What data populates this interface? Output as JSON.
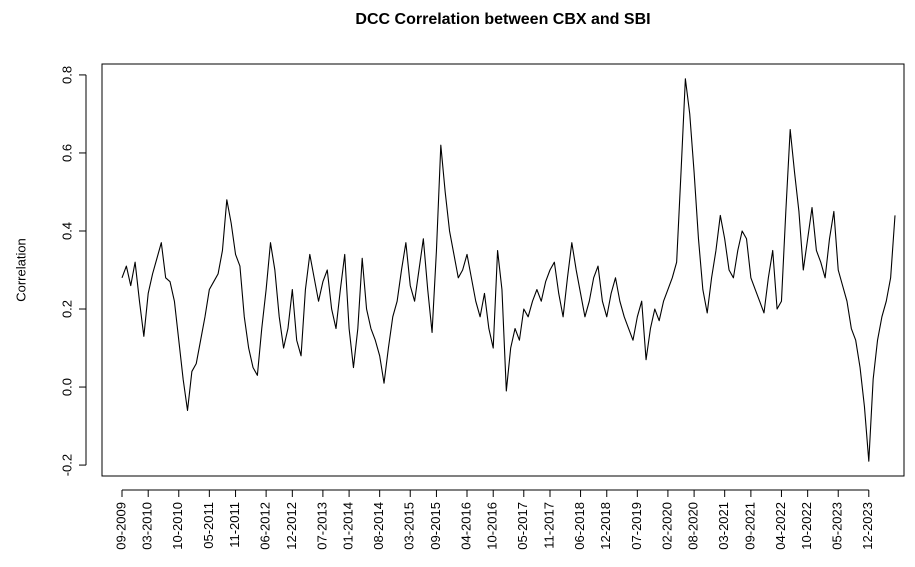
{
  "chart_data": {
    "type": "line",
    "title": "DCC Correlation between CBX and SBI",
    "y_label": "Correlation",
    "x": [
      "09-2009",
      "10-2009",
      "11-2009",
      "12-2009",
      "01-2010",
      "02-2010",
      "03-2010",
      "04-2010",
      "05-2010",
      "06-2010",
      "07-2010",
      "08-2010",
      "09-2010",
      "10-2010",
      "11-2010",
      "12-2010",
      "01-2011",
      "02-2011",
      "03-2011",
      "04-2011",
      "05-2011",
      "06-2011",
      "07-2011",
      "08-2011",
      "09-2011",
      "10-2011",
      "11-2011",
      "12-2011",
      "01-2012",
      "02-2012",
      "03-2012",
      "04-2012",
      "05-2012",
      "06-2012",
      "07-2012",
      "08-2012",
      "09-2012",
      "10-2012",
      "11-2012",
      "12-2012",
      "01-2013",
      "02-2013",
      "03-2013",
      "04-2013",
      "05-2013",
      "06-2013",
      "07-2013",
      "08-2013",
      "09-2013",
      "10-2013",
      "11-2013",
      "12-2013",
      "01-2014",
      "02-2014",
      "03-2014",
      "04-2014",
      "05-2014",
      "06-2014",
      "07-2014",
      "08-2014",
      "09-2014",
      "10-2014",
      "11-2014",
      "12-2014",
      "01-2015",
      "02-2015",
      "03-2015",
      "04-2015",
      "05-2015",
      "06-2015",
      "07-2015",
      "08-2015",
      "09-2015",
      "10-2015",
      "11-2015",
      "12-2015",
      "01-2016",
      "02-2016",
      "03-2016",
      "04-2016",
      "05-2016",
      "06-2016",
      "07-2016",
      "08-2016",
      "09-2016",
      "10-2016",
      "11-2016",
      "12-2016",
      "01-2017",
      "02-2017",
      "03-2017",
      "04-2017",
      "05-2017",
      "06-2017",
      "07-2017",
      "08-2017",
      "09-2017",
      "10-2017",
      "11-2017",
      "12-2017",
      "01-2018",
      "02-2018",
      "03-2018",
      "04-2018",
      "05-2018",
      "06-2018",
      "07-2018",
      "08-2018",
      "09-2018",
      "10-2018",
      "11-2018",
      "12-2018",
      "01-2019",
      "02-2019",
      "03-2019",
      "04-2019",
      "05-2019",
      "06-2019",
      "07-2019",
      "08-2019",
      "09-2019",
      "10-2019",
      "11-2019",
      "12-2019",
      "01-2020",
      "02-2020",
      "03-2020",
      "04-2020",
      "05-2020",
      "06-2020",
      "07-2020",
      "08-2020",
      "09-2020",
      "10-2020",
      "11-2020",
      "12-2020",
      "01-2021",
      "02-2021",
      "03-2021",
      "04-2021",
      "05-2021",
      "06-2021",
      "07-2021",
      "08-2021",
      "09-2021",
      "10-2021",
      "11-2021",
      "12-2021",
      "01-2022",
      "02-2022",
      "03-2022",
      "04-2022",
      "05-2022",
      "06-2022",
      "07-2022",
      "08-2022",
      "09-2022",
      "10-2022",
      "11-2022",
      "12-2022",
      "01-2023",
      "02-2023",
      "03-2023",
      "04-2023",
      "05-2023",
      "06-2023",
      "07-2023",
      "08-2023",
      "09-2023",
      "10-2023",
      "11-2023",
      "12-2023",
      "01-2024",
      "02-2024",
      "03-2024",
      "04-2024",
      "05-2024",
      "06-2024"
    ],
    "values": [
      0.28,
      0.31,
      0.26,
      0.32,
      0.22,
      0.13,
      0.24,
      0.29,
      0.33,
      0.37,
      0.28,
      0.27,
      0.22,
      0.12,
      0.02,
      -0.06,
      0.04,
      0.06,
      0.12,
      0.18,
      0.25,
      0.27,
      0.29,
      0.35,
      0.48,
      0.42,
      0.34,
      0.31,
      0.18,
      0.1,
      0.05,
      0.03,
      0.15,
      0.25,
      0.37,
      0.3,
      0.18,
      0.1,
      0.15,
      0.25,
      0.12,
      0.08,
      0.25,
      0.34,
      0.28,
      0.22,
      0.27,
      0.3,
      0.2,
      0.15,
      0.25,
      0.34,
      0.15,
      0.05,
      0.15,
      0.33,
      0.2,
      0.15,
      0.12,
      0.08,
      0.01,
      0.1,
      0.18,
      0.22,
      0.3,
      0.37,
      0.26,
      0.22,
      0.3,
      0.38,
      0.25,
      0.14,
      0.35,
      0.62,
      0.5,
      0.4,
      0.34,
      0.28,
      0.3,
      0.34,
      0.28,
      0.22,
      0.18,
      0.24,
      0.15,
      0.1,
      0.35,
      0.25,
      -0.01,
      0.1,
      0.15,
      0.12,
      0.2,
      0.18,
      0.22,
      0.25,
      0.22,
      0.27,
      0.3,
      0.32,
      0.24,
      0.18,
      0.28,
      0.37,
      0.3,
      0.24,
      0.18,
      0.22,
      0.28,
      0.31,
      0.22,
      0.18,
      0.24,
      0.28,
      0.22,
      0.18,
      0.15,
      0.12,
      0.18,
      0.22,
      0.07,
      0.15,
      0.2,
      0.17,
      0.22,
      0.25,
      0.28,
      0.32,
      0.55,
      0.79,
      0.7,
      0.55,
      0.38,
      0.25,
      0.19,
      0.28,
      0.35,
      0.44,
      0.38,
      0.3,
      0.28,
      0.35,
      0.4,
      0.38,
      0.28,
      0.25,
      0.22,
      0.19,
      0.28,
      0.35,
      0.2,
      0.22,
      0.45,
      0.66,
      0.55,
      0.45,
      0.3,
      0.38,
      0.46,
      0.35,
      0.32,
      0.28,
      0.38,
      0.45,
      0.3,
      0.26,
      0.22,
      0.15,
      0.12,
      0.05,
      -0.05,
      -0.19,
      0.02,
      0.12,
      0.18,
      0.22,
      0.28,
      0.44
    ],
    "color": "#000000",
    "xticks": [
      "09-2009",
      "03-2010",
      "10-2010",
      "05-2011",
      "11-2011",
      "06-2012",
      "12-2012",
      "07-2013",
      "01-2014",
      "08-2014",
      "03-2015",
      "09-2015",
      "04-2016",
      "10-2016",
      "05-2017",
      "11-2017",
      "06-2018",
      "12-2018",
      "07-2019",
      "02-2020",
      "08-2020",
      "03-2021",
      "09-2021",
      "04-2022",
      "10-2022",
      "05-2023",
      "12-2023"
    ],
    "ylim": [
      -0.228,
      0.828
    ],
    "yticks": [
      -0.2,
      {
        "value": 0,
        "label": "0.0"
      },
      0.2,
      0.4,
      0.6,
      0.8
    ],
    "grid": false
  }
}
